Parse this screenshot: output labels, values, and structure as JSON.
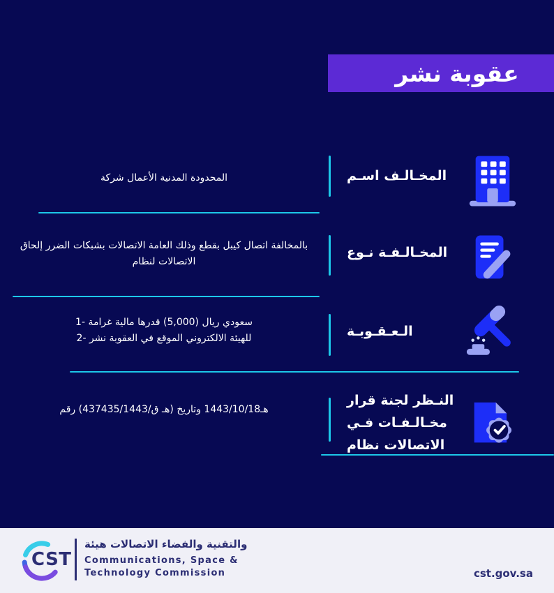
{
  "theme": {
    "bg": "#070953",
    "banner": "#5c2ad5",
    "cyan": "#1cc8e9",
    "icon_blue": "#1d2ef8",
    "icon_lavender": "#9aa2f4",
    "white": "#ffffff",
    "footer_bg": "#f0f0f7",
    "footer_ink": "#2c2e74"
  },
  "banner": {
    "title": "نشر عقوبة"
  },
  "rows": [
    {
      "id": "violator-name",
      "icon": "building-icon",
      "label_lines": [
        "اسـم المخـالـف"
      ],
      "content_lines": [
        "شركة الأعمال المدنية المحدودة"
      ]
    },
    {
      "id": "violation-type",
      "icon": "document-pen-icon",
      "label_lines": [
        "نـوع المخـالـفـة"
      ],
      "content_lines": [
        "إلحاق الضرر بشبكات الاتصالات العامة وذلك بقطع كيبل اتصال بالمخالفة",
        "لنظام الاتصالات"
      ]
    },
    {
      "id": "penalty",
      "icon": "gavel-icon",
      "label_lines": [
        "الـعـقـوبـة"
      ],
      "content_lines": [
        "1- غرامة مالية قدرها (5,000) ريال سعودي",
        "2- نشر العقوبة في الموقع الالكتروني للهيئة"
      ]
    },
    {
      "id": "decision",
      "icon": "document-check-icon",
      "label_lines": [
        "قرار لجنة النـظر",
        "فـي مخـالـفـات",
        "نظام الاتصالات"
      ],
      "content_lines": [
        "رقم (437435/ق/1443 هـ) وتاريخ 1443/10/18هـ"
      ]
    }
  ],
  "footer": {
    "logo_text": "CST",
    "org_name_ar": "هيئة الاتصالات والفضاء والتقنية",
    "org_name_en": [
      "Communications, Space &",
      "Technology Commission"
    ],
    "website": "cst.gov.sa"
  }
}
